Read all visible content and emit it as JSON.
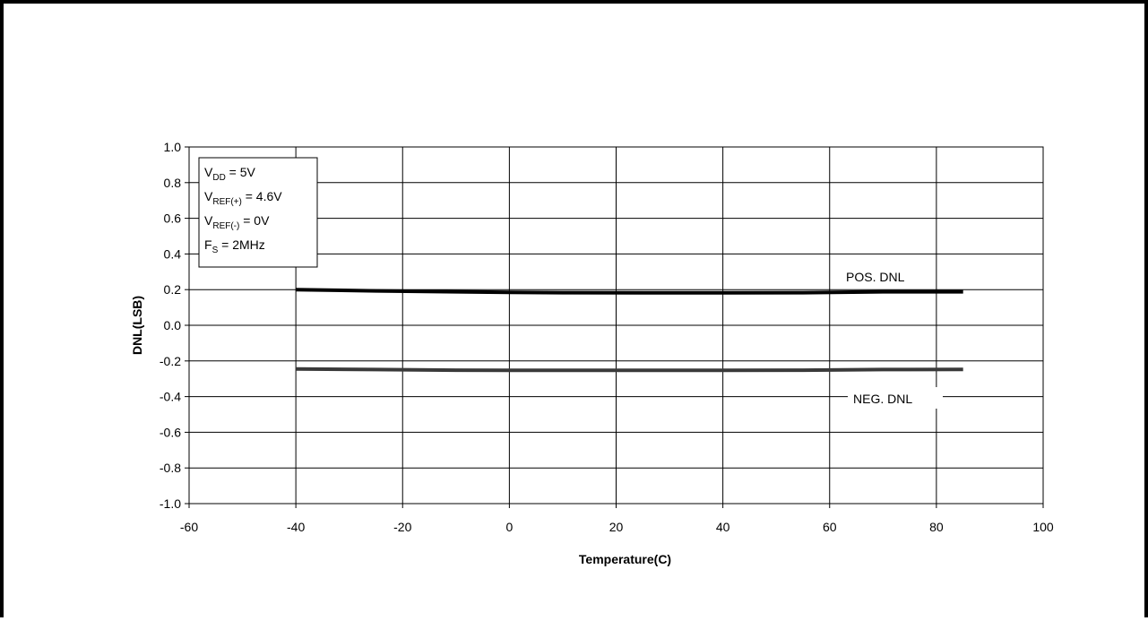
{
  "chart_data": {
    "type": "line",
    "title": "",
    "xlabel": "Temperature(C)",
    "ylabel": "DNL(LSB)",
    "xlim": [
      -60,
      100
    ],
    "ylim": [
      -1.0,
      1.0
    ],
    "xticks": [
      "-60",
      "-40",
      "-20",
      "0",
      "20",
      "40",
      "60",
      "80",
      "100"
    ],
    "yticks": [
      "1.0",
      "0.8",
      "0.6",
      "0.4",
      "0.2",
      "0.0",
      "-0.2",
      "-0.4",
      "-0.6",
      "-0.8",
      "-1.0"
    ],
    "grid": true,
    "series": [
      {
        "name": "POS. DNL",
        "color": "#000000",
        "x": [
          -40,
          -25,
          -10,
          0,
          10,
          25,
          40,
          55,
          70,
          85
        ],
        "y": [
          0.2,
          0.193,
          0.188,
          0.185,
          0.183,
          0.182,
          0.182,
          0.183,
          0.188,
          0.188
        ]
      },
      {
        "name": "NEG. DNL",
        "color": "#3a3a3a",
        "x": [
          -40,
          -25,
          -10,
          0,
          10,
          25,
          40,
          55,
          70,
          85
        ],
        "y": [
          -0.245,
          -0.248,
          -0.252,
          -0.253,
          -0.253,
          -0.253,
          -0.253,
          -0.252,
          -0.248,
          -0.247
        ]
      }
    ],
    "conditions": [
      {
        "main": "V",
        "sub": "DD",
        "rest": " = 5V"
      },
      {
        "main": "V",
        "sub": "REF(+)",
        "rest": " = 4.6V"
      },
      {
        "main": "V",
        "sub": "REF(-)",
        "rest": " = 0V"
      },
      {
        "main": "F",
        "sub": "S",
        "rest": " = 2MHz"
      }
    ]
  }
}
